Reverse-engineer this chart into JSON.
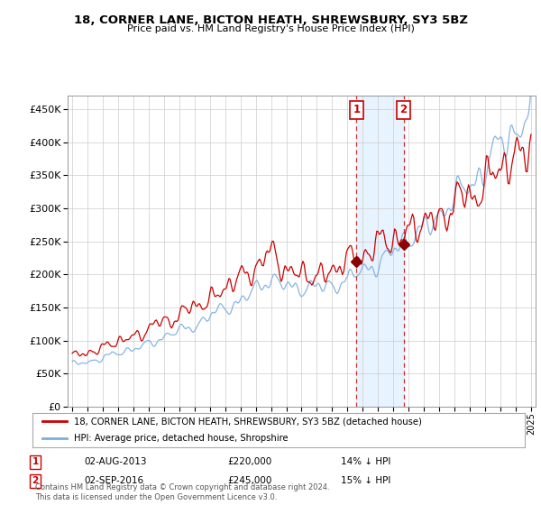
{
  "title": "18, CORNER LANE, BICTON HEATH, SHREWSBURY, SY3 5BZ",
  "subtitle": "Price paid vs. HM Land Registry's House Price Index (HPI)",
  "legend_label_red": "18, CORNER LANE, BICTON HEATH, SHREWSBURY, SY3 5BZ (detached house)",
  "legend_label_blue": "HPI: Average price, detached house, Shropshire",
  "sale1_date": "02-AUG-2013",
  "sale1_price": 220000,
  "sale1_pct": "14% ↓ HPI",
  "sale2_date": "02-SEP-2016",
  "sale2_price": 245000,
  "sale2_pct": "15% ↓ HPI",
  "sale1_year": 2013.583,
  "sale2_year": 2016.667,
  "footer": "Contains HM Land Registry data © Crown copyright and database right 2024.\nThis data is licensed under the Open Government Licence v3.0.",
  "red_color": "#cc0000",
  "blue_color": "#7aade0",
  "sale_dot_color": "#8b0000",
  "annotation_box_color": "#cc0000",
  "shading_color": "#ddeeff",
  "ylim": [
    0,
    470000
  ],
  "yticks": [
    0,
    50000,
    100000,
    150000,
    200000,
    250000,
    300000,
    350000,
    400000,
    450000
  ],
  "year_start": 1995,
  "year_end": 2025
}
